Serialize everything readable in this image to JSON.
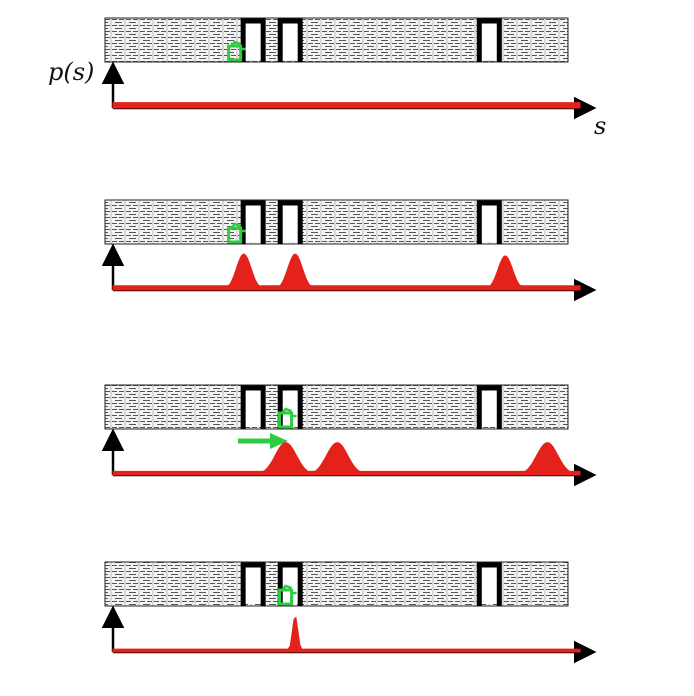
{
  "labels": {
    "y_axis": "p(s)",
    "x_axis": "s"
  },
  "colors": {
    "wall_fill": "#f4f4f4",
    "wall_pattern": "#555555",
    "door": "#000000",
    "robot": "#2ecc40",
    "belief": "#e4221b",
    "axis": "#000000"
  },
  "icons": {
    "robot": "robot-icon",
    "motion": "motion-arrow-icon"
  },
  "panels": [
    {
      "id": "initial-uniform",
      "show_labels": true,
      "robot_at": 0.28,
      "motion_arrow": false,
      "belief": {
        "baseline": 0.9,
        "peaks": []
      }
    },
    {
      "id": "after-sensing",
      "show_labels": false,
      "robot_at": 0.28,
      "motion_arrow": false,
      "belief": {
        "baseline": 0.12,
        "peaks": [
          {
            "at": 0.28,
            "height": 1.0,
            "width": 0.022
          },
          {
            "at": 0.39,
            "height": 1.0,
            "width": 0.022
          },
          {
            "at": 0.84,
            "height": 0.95,
            "width": 0.022
          }
        ]
      }
    },
    {
      "id": "after-motion",
      "show_labels": false,
      "robot_at": 0.39,
      "motion_arrow": true,
      "belief": {
        "baseline": 0.1,
        "peaks": [
          {
            "at": 0.37,
            "height": 0.9,
            "width": 0.032
          },
          {
            "at": 0.48,
            "height": 0.9,
            "width": 0.032
          },
          {
            "at": 0.93,
            "height": 0.9,
            "width": 0.032
          }
        ]
      }
    },
    {
      "id": "after-resensing",
      "show_labels": false,
      "robot_at": 0.39,
      "motion_arrow": false,
      "belief": {
        "baseline": 0.08,
        "peaks": [
          {
            "at": 0.39,
            "height": 1.0,
            "width": 0.008
          }
        ]
      }
    }
  ]
}
